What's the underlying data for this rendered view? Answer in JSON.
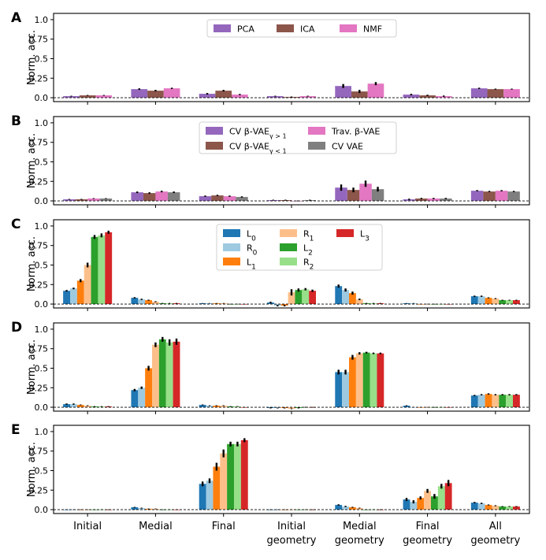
{
  "chart_data": {
    "type": "bar",
    "ylabel": "Norm. acc.",
    "ylim": [
      -0.05,
      1.08
    ],
    "yticks": [
      "0.0",
      "0.25",
      "0.5",
      "0.75",
      "1.0"
    ],
    "ytick_values": [
      0,
      0.25,
      0.5,
      0.75,
      1.0
    ],
    "reference_line": 0,
    "categories": [
      {
        "line1": "Initial",
        "line2": ""
      },
      {
        "line1": "Medial",
        "line2": ""
      },
      {
        "line1": "Final",
        "line2": ""
      },
      {
        "line1": "Initial",
        "line2": "geometry"
      },
      {
        "line1": "Medial",
        "line2": "geometry"
      },
      {
        "line1": "Final",
        "line2": "geometry"
      },
      {
        "line1": "All",
        "line2": "geometry"
      }
    ],
    "panels": [
      {
        "label": "A",
        "legend_ncol": 3,
        "series": [
          {
            "name": "PCA",
            "sub": "",
            "color": "#9467bd",
            "values": [
              0.02,
              0.11,
              0.05,
              0.02,
              0.15,
              0.04,
              0.12
            ],
            "errors": [
              0.005,
              0.01,
              0.01,
              0.005,
              0.025,
              0.01,
              0.008
            ]
          },
          {
            "name": "ICA",
            "sub": "",
            "color": "#8c564b",
            "values": [
              0.03,
              0.09,
              0.09,
              0.01,
              0.08,
              0.03,
              0.11
            ],
            "errors": [
              0.005,
              0.01,
              0.01,
              0.005,
              0.02,
              0.008,
              0.006
            ]
          },
          {
            "name": "NMF",
            "sub": "",
            "color": "#e377c2",
            "values": [
              0.03,
              0.12,
              0.04,
              0.02,
              0.18,
              0.02,
              0.11
            ],
            "errors": [
              0.005,
              0.008,
              0.008,
              0.005,
              0.02,
              0.008,
              0.006
            ]
          }
        ]
      },
      {
        "label": "B",
        "legend_ncol": 2,
        "series": [
          {
            "name": "CV β-VAE",
            "sub": "γ > 1",
            "color": "#9467bd",
            "values": [
              0.02,
              0.11,
              0.06,
              0.01,
              0.17,
              0.02,
              0.13
            ],
            "errors": [
              0.005,
              0.01,
              0.008,
              0.005,
              0.04,
              0.008,
              0.008
            ]
          },
          {
            "name": "CV β-VAE",
            "sub": "γ < 1",
            "color": "#8c564b",
            "values": [
              0.02,
              0.1,
              0.07,
              0.01,
              0.14,
              0.03,
              0.12
            ],
            "errors": [
              0.005,
              0.01,
              0.008,
              0.005,
              0.03,
              0.008,
              0.008
            ]
          },
          {
            "name": "Trav. β-VAE",
            "sub": "",
            "color": "#e377c2",
            "values": [
              0.03,
              0.12,
              0.06,
              0.0,
              0.22,
              0.03,
              0.13
            ],
            "errors": [
              0.005,
              0.01,
              0.008,
              0.005,
              0.04,
              0.008,
              0.008
            ]
          },
          {
            "name": "CV VAE",
            "sub": "",
            "color": "#7f7f7f",
            "values": [
              0.03,
              0.11,
              0.05,
              0.01,
              0.15,
              0.03,
              0.12
            ],
            "errors": [
              0.005,
              0.01,
              0.008,
              0.005,
              0.03,
              0.008,
              0.008
            ]
          }
        ]
      },
      {
        "label": "C",
        "legend_ncol": 3,
        "series": [
          {
            "name": "L",
            "sub": "0",
            "color": "#1f77b4",
            "values": [
              0.17,
              0.08,
              0.01,
              0.02,
              0.23,
              0.01,
              0.1
            ],
            "errors": [
              0.01,
              0.008,
              0.003,
              0.01,
              0.02,
              0.003,
              0.008
            ]
          },
          {
            "name": "R",
            "sub": "0",
            "color": "#9ecae1",
            "values": [
              0.2,
              0.06,
              0.01,
              -0.02,
              0.18,
              0.01,
              0.1
            ],
            "errors": [
              0.01,
              0.008,
              0.003,
              0.01,
              0.02,
              0.003,
              0.008
            ]
          },
          {
            "name": "L",
            "sub": "1",
            "color": "#ff7f0e",
            "values": [
              0.3,
              0.05,
              0.01,
              -0.02,
              0.14,
              0.0,
              0.08
            ],
            "errors": [
              0.02,
              0.006,
              0.003,
              0.01,
              0.02,
              0.003,
              0.006
            ]
          },
          {
            "name": "R",
            "sub": "1",
            "color": "#fdbf8a",
            "values": [
              0.5,
              0.03,
              0.01,
              0.15,
              0.06,
              0.0,
              0.07
            ],
            "errors": [
              0.03,
              0.006,
              0.003,
              0.04,
              0.01,
              0.003,
              0.006
            ]
          },
          {
            "name": "L",
            "sub": "2",
            "color": "#2ca02c",
            "values": [
              0.86,
              0.01,
              0.0,
              0.18,
              0.01,
              0.0,
              0.05
            ],
            "errors": [
              0.025,
              0.004,
              0.003,
              0.02,
              0.004,
              0.003,
              0.005
            ]
          },
          {
            "name": "R",
            "sub": "2",
            "color": "#98df8a",
            "values": [
              0.88,
              0.01,
              0.0,
              0.19,
              0.01,
              0.0,
              0.05
            ],
            "errors": [
              0.025,
              0.004,
              0.003,
              0.015,
              0.004,
              0.003,
              0.005
            ]
          },
          {
            "name": "L",
            "sub": "3",
            "color": "#d62728",
            "values": [
              0.92,
              0.01,
              0.0,
              0.17,
              0.01,
              0.0,
              0.05
            ],
            "errors": [
              0.02,
              0.004,
              0.003,
              0.015,
              0.004,
              0.003,
              0.005
            ]
          }
        ]
      },
      {
        "label": "D",
        "legend_ncol": 0,
        "series": [
          {
            "name": "L",
            "sub": "0",
            "color": "#1f77b4",
            "values": [
              0.04,
              0.22,
              0.03,
              -0.01,
              0.45,
              0.02,
              0.15
            ],
            "errors": [
              0.008,
              0.015,
              0.005,
              0.005,
              0.03,
              0.005,
              0.008
            ]
          },
          {
            "name": "R",
            "sub": "0",
            "color": "#9ecae1",
            "values": [
              0.04,
              0.25,
              0.02,
              -0.01,
              0.45,
              0.0,
              0.16
            ],
            "errors": [
              0.008,
              0.015,
              0.005,
              0.005,
              0.03,
              0.003,
              0.008
            ]
          },
          {
            "name": "L",
            "sub": "1",
            "color": "#ff7f0e",
            "values": [
              0.03,
              0.5,
              0.02,
              -0.01,
              0.64,
              0.0,
              0.17
            ],
            "errors": [
              0.005,
              0.03,
              0.005,
              0.005,
              0.03,
              0.003,
              0.008
            ]
          },
          {
            "name": "R",
            "sub": "1",
            "color": "#fdbf8a",
            "values": [
              0.02,
              0.8,
              0.02,
              -0.02,
              0.69,
              0.0,
              0.16
            ],
            "errors": [
              0.005,
              0.03,
              0.005,
              0.005,
              0.015,
              0.003,
              0.008
            ]
          },
          {
            "name": "L",
            "sub": "2",
            "color": "#2ca02c",
            "values": [
              0.01,
              0.87,
              0.01,
              -0.01,
              0.7,
              0.0,
              0.16
            ],
            "errors": [
              0.004,
              0.03,
              0.004,
              0.005,
              0.01,
              0.003,
              0.008
            ]
          },
          {
            "name": "R",
            "sub": "2",
            "color": "#98df8a",
            "values": [
              0.01,
              0.83,
              0.01,
              0.0,
              0.69,
              0.0,
              0.16
            ],
            "errors": [
              0.004,
              0.04,
              0.004,
              0.005,
              0.01,
              0.003,
              0.008
            ]
          },
          {
            "name": "L",
            "sub": "3",
            "color": "#d62728",
            "values": [
              0.01,
              0.84,
              0.0,
              0.0,
              0.69,
              0.0,
              0.16
            ],
            "errors": [
              0.004,
              0.04,
              0.003,
              0.004,
              0.01,
              0.003,
              0.008
            ]
          }
        ]
      },
      {
        "label": "E",
        "legend_ncol": 0,
        "series": [
          {
            "name": "L",
            "sub": "0",
            "color": "#1f77b4",
            "values": [
              0.0,
              0.03,
              0.33,
              0.0,
              0.06,
              0.13,
              0.09
            ],
            "errors": [
              0.003,
              0.005,
              0.03,
              0.003,
              0.008,
              0.02,
              0.008
            ]
          },
          {
            "name": "R",
            "sub": "0",
            "color": "#9ecae1",
            "values": [
              0.0,
              0.02,
              0.37,
              0.0,
              0.04,
              0.1,
              0.08
            ],
            "errors": [
              0.003,
              0.005,
              0.03,
              0.003,
              0.008,
              0.02,
              0.008
            ]
          },
          {
            "name": "L",
            "sub": "1",
            "color": "#ff7f0e",
            "values": [
              0.0,
              0.01,
              0.55,
              0.0,
              0.03,
              0.15,
              0.06
            ],
            "errors": [
              0.003,
              0.004,
              0.05,
              0.003,
              0.006,
              0.02,
              0.006
            ]
          },
          {
            "name": "R",
            "sub": "1",
            "color": "#fdbf8a",
            "values": [
              0.0,
              0.01,
              0.72,
              0.0,
              0.02,
              0.24,
              0.05
            ],
            "errors": [
              0.003,
              0.004,
              0.05,
              0.003,
              0.005,
              0.025,
              0.006
            ]
          },
          {
            "name": "L",
            "sub": "2",
            "color": "#2ca02c",
            "values": [
              0.0,
              0.0,
              0.84,
              0.0,
              0.0,
              0.17,
              0.04
            ],
            "errors": [
              0.003,
              0.003,
              0.03,
              0.003,
              0.004,
              0.03,
              0.005
            ]
          },
          {
            "name": "R",
            "sub": "2",
            "color": "#98df8a",
            "values": [
              0.0,
              0.0,
              0.84,
              0.0,
              0.0,
              0.3,
              0.04
            ],
            "errors": [
              0.003,
              0.003,
              0.03,
              0.003,
              0.004,
              0.03,
              0.005
            ]
          },
          {
            "name": "L",
            "sub": "3",
            "color": "#d62728",
            "values": [
              0.0,
              0.0,
              0.89,
              0.0,
              0.0,
              0.34,
              0.04
            ],
            "errors": [
              0.003,
              0.003,
              0.025,
              0.003,
              0.004,
              0.04,
              0.005
            ]
          }
        ]
      }
    ]
  }
}
